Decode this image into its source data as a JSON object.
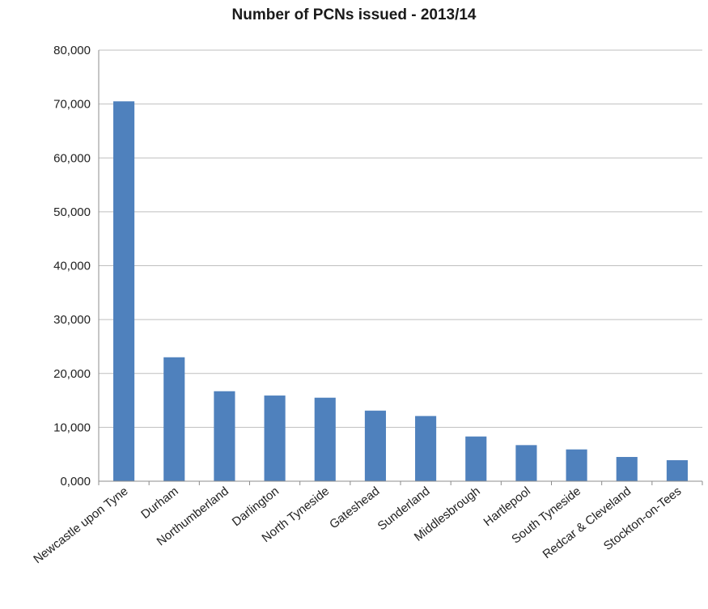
{
  "chart_data": {
    "type": "bar",
    "title": "Number of PCNs issued - 2013/14",
    "xlabel": "",
    "ylabel": "",
    "categories": [
      "Newcastle upon Tyne",
      "Durham",
      "Northumberland",
      "Darlington",
      "North Tyneside",
      "Gateshead",
      "Sunderland",
      "Middlesbrough",
      "Hartlepool",
      "South Tyneside",
      "Redcar & Cleveland",
      "Stockton-on-Tees"
    ],
    "values": [
      70500,
      23000,
      16700,
      15900,
      15500,
      13100,
      12100,
      8300,
      6700,
      5900,
      4500,
      3900
    ],
    "ylim": [
      0,
      80000
    ],
    "yticks": [
      0,
      10000,
      20000,
      30000,
      40000,
      50000,
      60000,
      70000,
      80000
    ],
    "ytick_labels": [
      "0,000",
      "10,000",
      "20,000",
      "30,000",
      "40,000",
      "50,000",
      "60,000",
      "70,000",
      "80,000"
    ],
    "grid": true,
    "legend": "none",
    "bar_color": "#4f81bd",
    "grid_color": "#bfbfbf",
    "axis_color": "#8c8c8c"
  }
}
